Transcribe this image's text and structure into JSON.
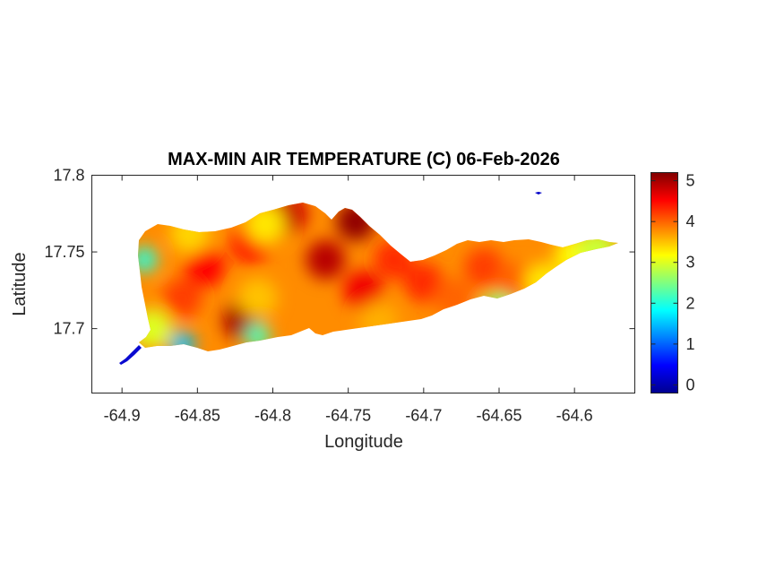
{
  "chart_data": {
    "type": "heatmap",
    "title": "MAX-MIN AIR TEMPERATURE (C) 06-Feb-2026",
    "xlabel": "Longitude",
    "ylabel": "Latitude",
    "xlim": [
      -64.92,
      -64.56
    ],
    "ylim": [
      17.658,
      17.8
    ],
    "xticks": [
      -64.9,
      -64.85,
      -64.8,
      -64.75,
      -64.7,
      -64.65,
      -64.6
    ],
    "xtick_labels": [
      "-64.9",
      "-64.85",
      "-64.8",
      "-64.75",
      "-64.7",
      "-64.65",
      "-64.6"
    ],
    "yticks": [
      17.7,
      17.75,
      17.8
    ],
    "ytick_labels": [
      "17.7",
      "17.75",
      "17.8"
    ],
    "colorbar": {
      "colormap": "jet",
      "range": [
        -0.2,
        5.2
      ],
      "ticks": [
        0,
        1,
        2,
        3,
        4,
        5
      ],
      "tick_labels": [
        "0",
        "1",
        "2",
        "3",
        "4",
        "5"
      ]
    },
    "grid": false,
    "hotspots": [
      {
        "lon": -64.82,
        "lat": 17.705,
        "value": 5.0
      },
      {
        "lon": -64.745,
        "lat": 17.77,
        "value": 5.1
      },
      {
        "lon": -64.79,
        "lat": 17.775,
        "value": 4.8
      },
      {
        "lon": -64.765,
        "lat": 17.745,
        "value": 4.9
      },
      {
        "lon": -64.74,
        "lat": 17.725,
        "value": 4.6
      },
      {
        "lon": -64.845,
        "lat": 17.74,
        "value": 4.5
      },
      {
        "lon": -64.815,
        "lat": 17.755,
        "value": 4.4
      },
      {
        "lon": -64.86,
        "lat": 17.72,
        "value": 4.2
      },
      {
        "lon": -64.72,
        "lat": 17.745,
        "value": 4.3
      },
      {
        "lon": -64.66,
        "lat": 17.74,
        "value": 4.2
      },
      {
        "lon": -64.64,
        "lat": 17.73,
        "value": 4.0
      },
      {
        "lon": -64.7,
        "lat": 17.73,
        "value": 4.3
      },
      {
        "lon": -64.68,
        "lat": 17.72,
        "value": 4.0
      },
      {
        "lon": -64.855,
        "lat": 17.762,
        "value": 3.4
      },
      {
        "lon": -64.805,
        "lat": 17.768,
        "value": 3.3
      },
      {
        "lon": -64.81,
        "lat": 17.72,
        "value": 3.5
      },
      {
        "lon": -64.73,
        "lat": 17.705,
        "value": 3.6
      },
      {
        "lon": -64.6,
        "lat": 17.748,
        "value": 3.2
      },
      {
        "lon": -64.62,
        "lat": 17.73,
        "value": 3.3
      },
      {
        "lon": -64.585,
        "lat": 17.752,
        "value": 2.9
      },
      {
        "lon": -64.88,
        "lat": 17.7,
        "value": 3.0
      },
      {
        "lon": -64.86,
        "lat": 17.69,
        "value": 1.5
      },
      {
        "lon": -64.81,
        "lat": 17.695,
        "value": 2.2
      },
      {
        "lon": -64.65,
        "lat": 17.71,
        "value": 2.5
      },
      {
        "lon": -64.885,
        "lat": 17.745,
        "value": 2.0
      },
      {
        "lon": -64.9,
        "lat": 17.68,
        "value": 0.0
      },
      {
        "lon": -64.625,
        "lat": 17.787,
        "value": 0.0
      }
    ]
  }
}
